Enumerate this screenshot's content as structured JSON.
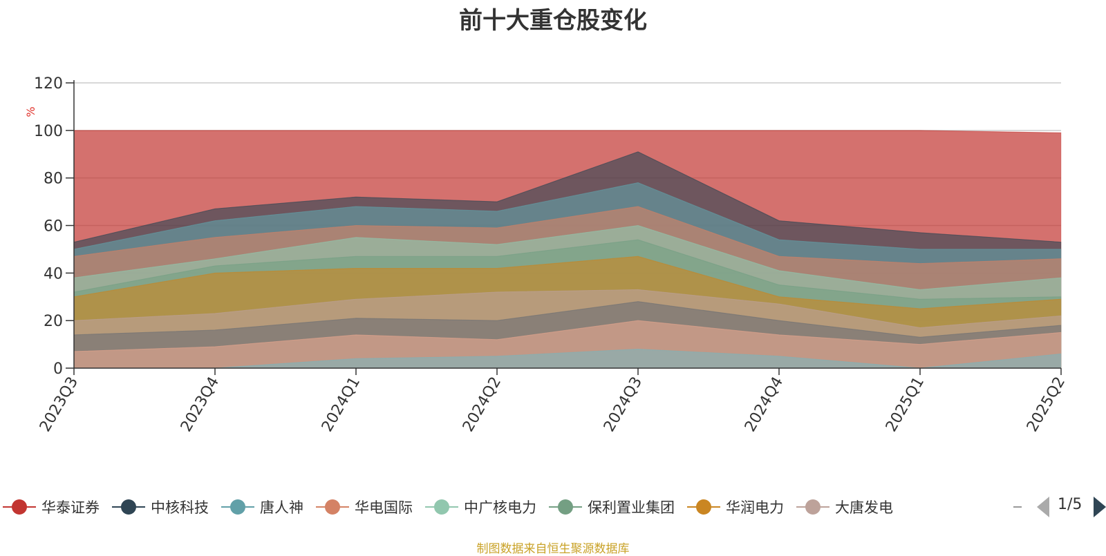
{
  "chart_data": {
    "type": "area",
    "title": "前十大重仓股变化",
    "ylabel": "%",
    "ylim": [
      0,
      120
    ],
    "yticks": [
      "0",
      "20",
      "40",
      "60",
      "80",
      "100",
      "120"
    ],
    "categories": [
      "2023Q3",
      "2023Q4",
      "2024Q1",
      "2024Q2",
      "2024Q3",
      "2024Q4",
      "2025Q1",
      "2025Q2"
    ],
    "grid": true,
    "legend_position": "bottom",
    "series": [
      {
        "name": "华泰证券",
        "color": "#c23531",
        "values": [
          100,
          100,
          100,
          100,
          100,
          100,
          100,
          99
        ]
      },
      {
        "name": "中核科技",
        "color": "#2f4554",
        "values": [
          53,
          67,
          72,
          70,
          91,
          62,
          57,
          53
        ]
      },
      {
        "name": "唐人神",
        "color": "#61a0a8",
        "values": [
          50,
          62,
          68,
          66,
          78,
          54,
          50,
          50
        ]
      },
      {
        "name": "华电国际",
        "color": "#d48265",
        "values": [
          47,
          55,
          60,
          59,
          68,
          47,
          44,
          46
        ]
      },
      {
        "name": "中广核电力",
        "color": "#91c7ae",
        "values": [
          38,
          46,
          55,
          52,
          60,
          41,
          33,
          38
        ]
      },
      {
        "name": "保利置业集团",
        "color": "#749f83",
        "values": [
          32,
          43,
          47,
          47,
          54,
          35,
          29,
          30
        ]
      },
      {
        "name": "华润电力",
        "color": "#ca8622",
        "values": [
          30,
          40,
          42,
          42,
          47,
          30,
          25,
          29
        ]
      },
      {
        "name": "大唐发电",
        "color": "#bda29a",
        "values": [
          20,
          23,
          29,
          32,
          33,
          27,
          17,
          22
        ]
      },
      {
        "name": "",
        "color": "#6e7074",
        "values": [
          14,
          16,
          21,
          20,
          28,
          20,
          13,
          18
        ]
      },
      {
        "name": "",
        "color": "#e5a690",
        "values": [
          7,
          9,
          14,
          12,
          20,
          14,
          10,
          15
        ]
      },
      {
        "name": "",
        "color": "#7fb3ba",
        "values": [
          0,
          0,
          4,
          5,
          8,
          5,
          0,
          6
        ]
      }
    ]
  },
  "legend": {
    "items": [
      {
        "label": "华泰证券",
        "color": "#c23531"
      },
      {
        "label": "中核科技",
        "color": "#2f4554"
      },
      {
        "label": "唐人神",
        "color": "#61a0a8"
      },
      {
        "label": "华电国际",
        "color": "#d48265"
      },
      {
        "label": "中广核电力",
        "color": "#91c7ae"
      },
      {
        "label": "保利置业集团",
        "color": "#749f83"
      },
      {
        "label": "华润电力",
        "color": "#ca8622"
      },
      {
        "label": "大唐发电",
        "color": "#bda29a"
      }
    ],
    "page_text": "1/5"
  },
  "source_note": "制图数据来自恒生聚源数据库"
}
